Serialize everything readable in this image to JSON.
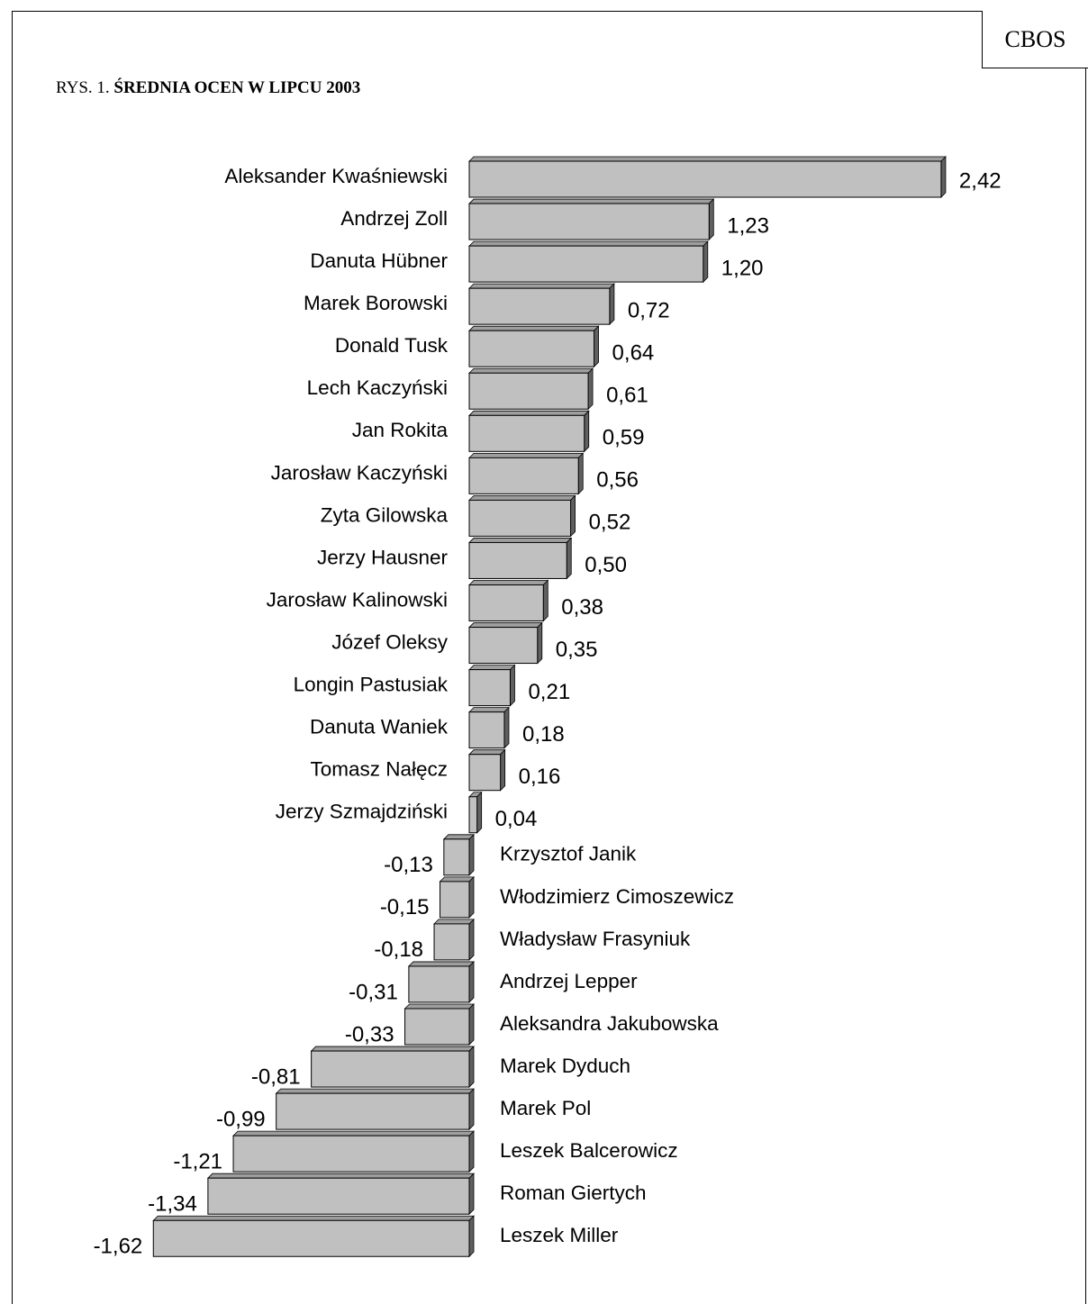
{
  "brand": "CBOS",
  "figure": {
    "prefix": "RYS. 1. ",
    "title": "ŚREDNIA OCEN W LIPCU 2003"
  },
  "colors": {
    "bar_face": "#c0c0c0",
    "bar_top": "#9e9e9e",
    "bar_side": "#606060",
    "outline": "#000000"
  },
  "chart_data": {
    "type": "bar",
    "orientation": "horizontal",
    "title": "ŚREDNIA OCEN W LIPCU 2003",
    "categories": [
      "Aleksander Kwaśniewski",
      "Andrzej Zoll",
      "Danuta Hübner",
      "Marek Borowski",
      "Donald Tusk",
      "Lech Kaczyński",
      "Jan Rokita",
      "Jarosław Kaczyński",
      "Zyta Gilowska",
      "Jerzy Hausner",
      "Jarosław Kalinowski",
      "Józef Oleksy",
      "Longin Pastusiak",
      "Danuta Waniek",
      "Tomasz Nałęcz",
      "Jerzy Szmajdziński",
      "Krzysztof Janik",
      "Włodzimierz Cimoszewicz",
      "Władysław Frasyniuk",
      "Andrzej Lepper",
      "Aleksandra Jakubowska",
      "Marek Dyduch",
      "Marek Pol",
      "Leszek Balcerowicz",
      "Roman Giertych",
      "Leszek Miller"
    ],
    "values": [
      2.42,
      1.23,
      1.2,
      0.72,
      0.64,
      0.61,
      0.59,
      0.56,
      0.52,
      0.5,
      0.38,
      0.35,
      0.21,
      0.18,
      0.16,
      0.04,
      -0.13,
      -0.15,
      -0.18,
      -0.31,
      -0.33,
      -0.81,
      -0.99,
      -1.21,
      -1.34,
      -1.62
    ],
    "value_labels": [
      "2,42",
      "1,23",
      "1,20",
      "0,72",
      "0,64",
      "0,61",
      "0,59",
      "0,56",
      "0,52",
      "0,50",
      "0,38",
      "0,35",
      "0,21",
      "0,18",
      "0,16",
      "0,04",
      "-0,13",
      "-0,15",
      "-0,18",
      "-0,31",
      "-0,33",
      "-0,81",
      "-0,99",
      "-1,21",
      "-1,34",
      "-1,62"
    ],
    "xlim": [
      -1.62,
      2.42
    ],
    "grid": false,
    "legend": "none"
  }
}
